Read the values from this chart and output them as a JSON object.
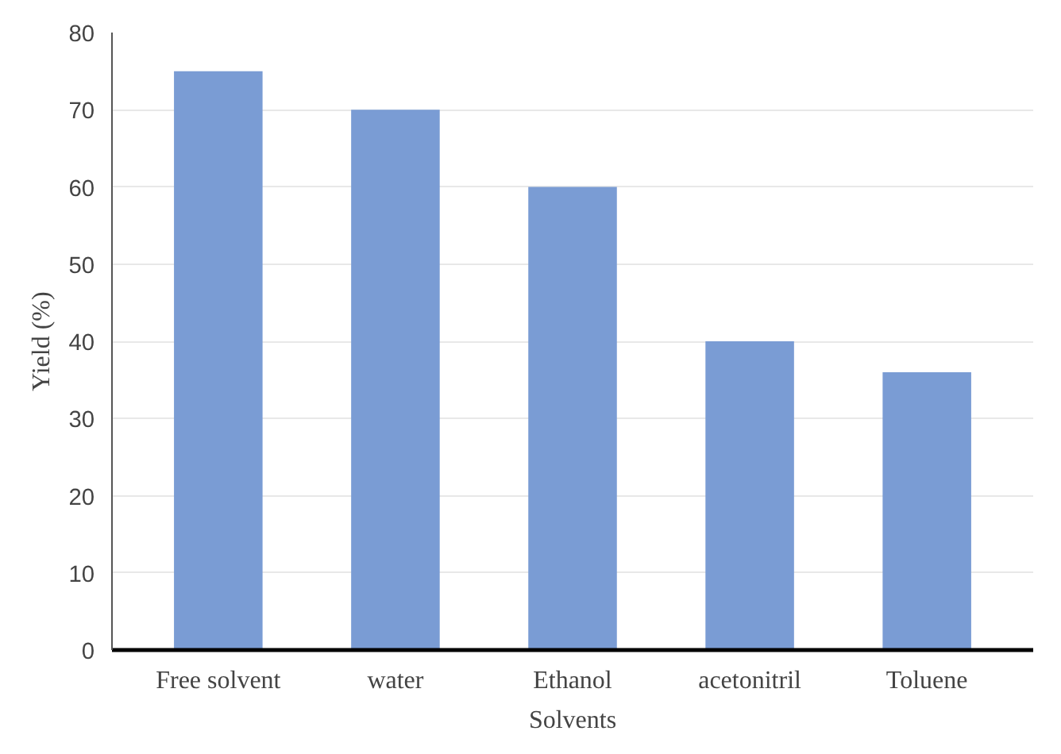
{
  "chart_data": {
    "type": "bar",
    "xlabel": "Solvents",
    "ylabel": "Yield (%)",
    "categories": [
      "Free solvent",
      "water",
      "Ethanol",
      "acetonitril",
      "Toluene"
    ],
    "values": [
      75,
      70,
      60,
      40,
      36
    ],
    "color": "#7a9cd4",
    "ylim": [
      0,
      80
    ],
    "yticks": [
      0,
      10,
      20,
      30,
      40,
      50,
      60,
      70,
      80
    ],
    "grid": "y"
  }
}
